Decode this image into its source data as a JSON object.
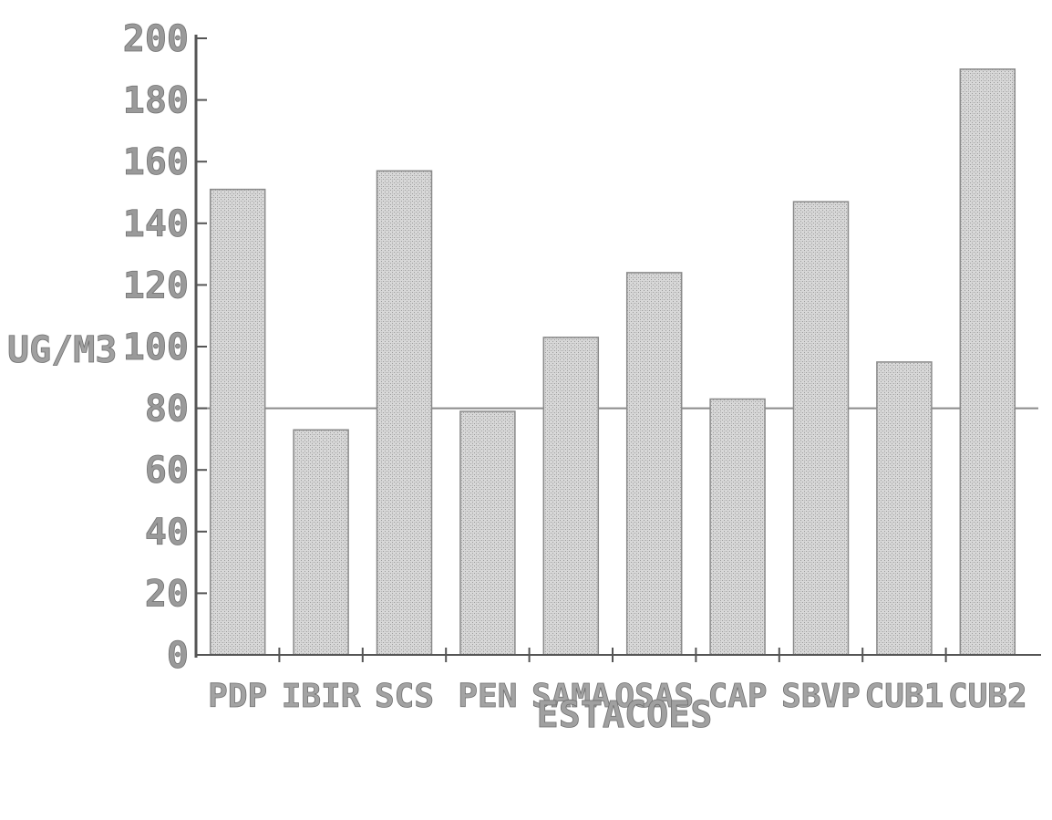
{
  "chart_data": {
    "type": "bar",
    "categories": [
      "PDP",
      "IBIR",
      "SCS",
      "PEN",
      "SAMA",
      "OSAS",
      "CAP",
      "SBVP",
      "CUB1",
      "CUB2"
    ],
    "values": [
      151,
      73,
      157,
      79,
      103,
      124,
      83,
      147,
      95,
      190
    ],
    "reference_line": 80,
    "ylabel": "UG/M3",
    "xlabel": "ESTACOES",
    "ylim": [
      0,
      200
    ],
    "yticks": [
      0,
      20,
      40,
      60,
      80,
      100,
      120,
      140,
      160,
      180,
      200
    ],
    "ytick_labels": [
      "0",
      "20",
      "40",
      "60",
      "80",
      "100",
      "120",
      "140",
      "160",
      "180",
      "200"
    ],
    "grid": false,
    "colors": {
      "bar": "#cfcfcf",
      "bar_edge": "#8a8a8a",
      "axis": "#555555",
      "reference_line": "#8a8a8a"
    }
  }
}
